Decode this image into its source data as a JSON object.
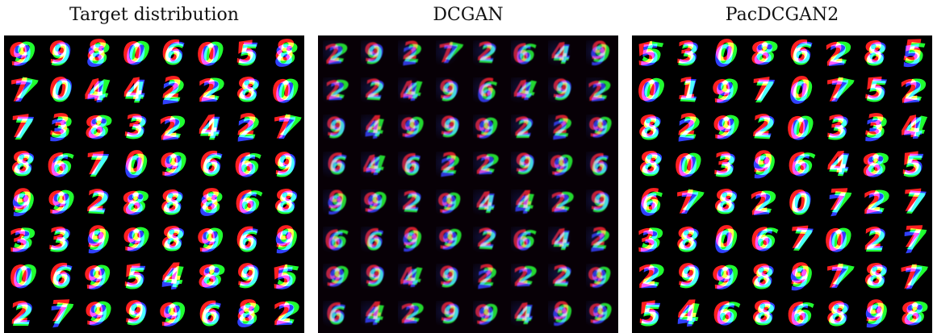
{
  "panels": [
    {
      "title": "Target distribution",
      "style": "clean",
      "digits": [
        "9",
        "9",
        "8",
        "0",
        "6",
        "0",
        "5",
        "8",
        "7",
        "0",
        "4",
        "4",
        "2",
        "2",
        "8",
        "0",
        "7",
        "3",
        "8",
        "3",
        "2",
        "4",
        "2",
        "7",
        "8",
        "6",
        "7",
        "0",
        "9",
        "6",
        "6",
        "9",
        "9",
        "9",
        "2",
        "8",
        "8",
        "8",
        "6",
        "8",
        "3",
        "3",
        "9",
        "9",
        "8",
        "9",
        "6",
        "9",
        "0",
        "6",
        "9",
        "5",
        "4",
        "8",
        "9",
        "5",
        "2",
        "7",
        "9",
        "9",
        "9",
        "6",
        "8",
        "2"
      ]
    },
    {
      "title": "DCGAN",
      "style": "noisy",
      "digits": [
        "2",
        "9",
        "2",
        "7",
        "2",
        "6",
        "4",
        "9",
        "2",
        "2",
        "4",
        "9",
        "6",
        "4",
        "9",
        "2",
        "9",
        "4",
        "9",
        "9",
        "9",
        "2",
        "2",
        "9",
        "6",
        "4",
        "6",
        "2",
        "2",
        "9",
        "9",
        "6",
        "9",
        "9",
        "2",
        "9",
        "4",
        "4",
        "2",
        "9",
        "6",
        "6",
        "9",
        "9",
        "2",
        "6",
        "4",
        "2",
        "9",
        "9",
        "4",
        "9",
        "2",
        "2",
        "2",
        "9",
        "6",
        "4",
        "2",
        "9",
        "9",
        "4",
        "9",
        "9"
      ]
    },
    {
      "title": "PacDCGAN2",
      "style": "clean",
      "digits": [
        "5",
        "3",
        "0",
        "8",
        "6",
        "2",
        "8",
        "5",
        "0",
        "1",
        "9",
        "7",
        "0",
        "7",
        "5",
        "2",
        "8",
        "2",
        "9",
        "2",
        "0",
        "3",
        "3",
        "4",
        "8",
        "0",
        "3",
        "9",
        "6",
        "4",
        "8",
        "5",
        "6",
        "7",
        "8",
        "2",
        "0",
        "7",
        "2",
        "7",
        "3",
        "8",
        "0",
        "6",
        "7",
        "0",
        "2",
        "7",
        "2",
        "9",
        "9",
        "8",
        "9",
        "7",
        "8",
        "7",
        "5",
        "4",
        "6",
        "8",
        "6",
        "8",
        "9",
        "8"
      ]
    }
  ],
  "colors": [
    "#ff2020",
    "#20ff30",
    "#3040ff"
  ]
}
